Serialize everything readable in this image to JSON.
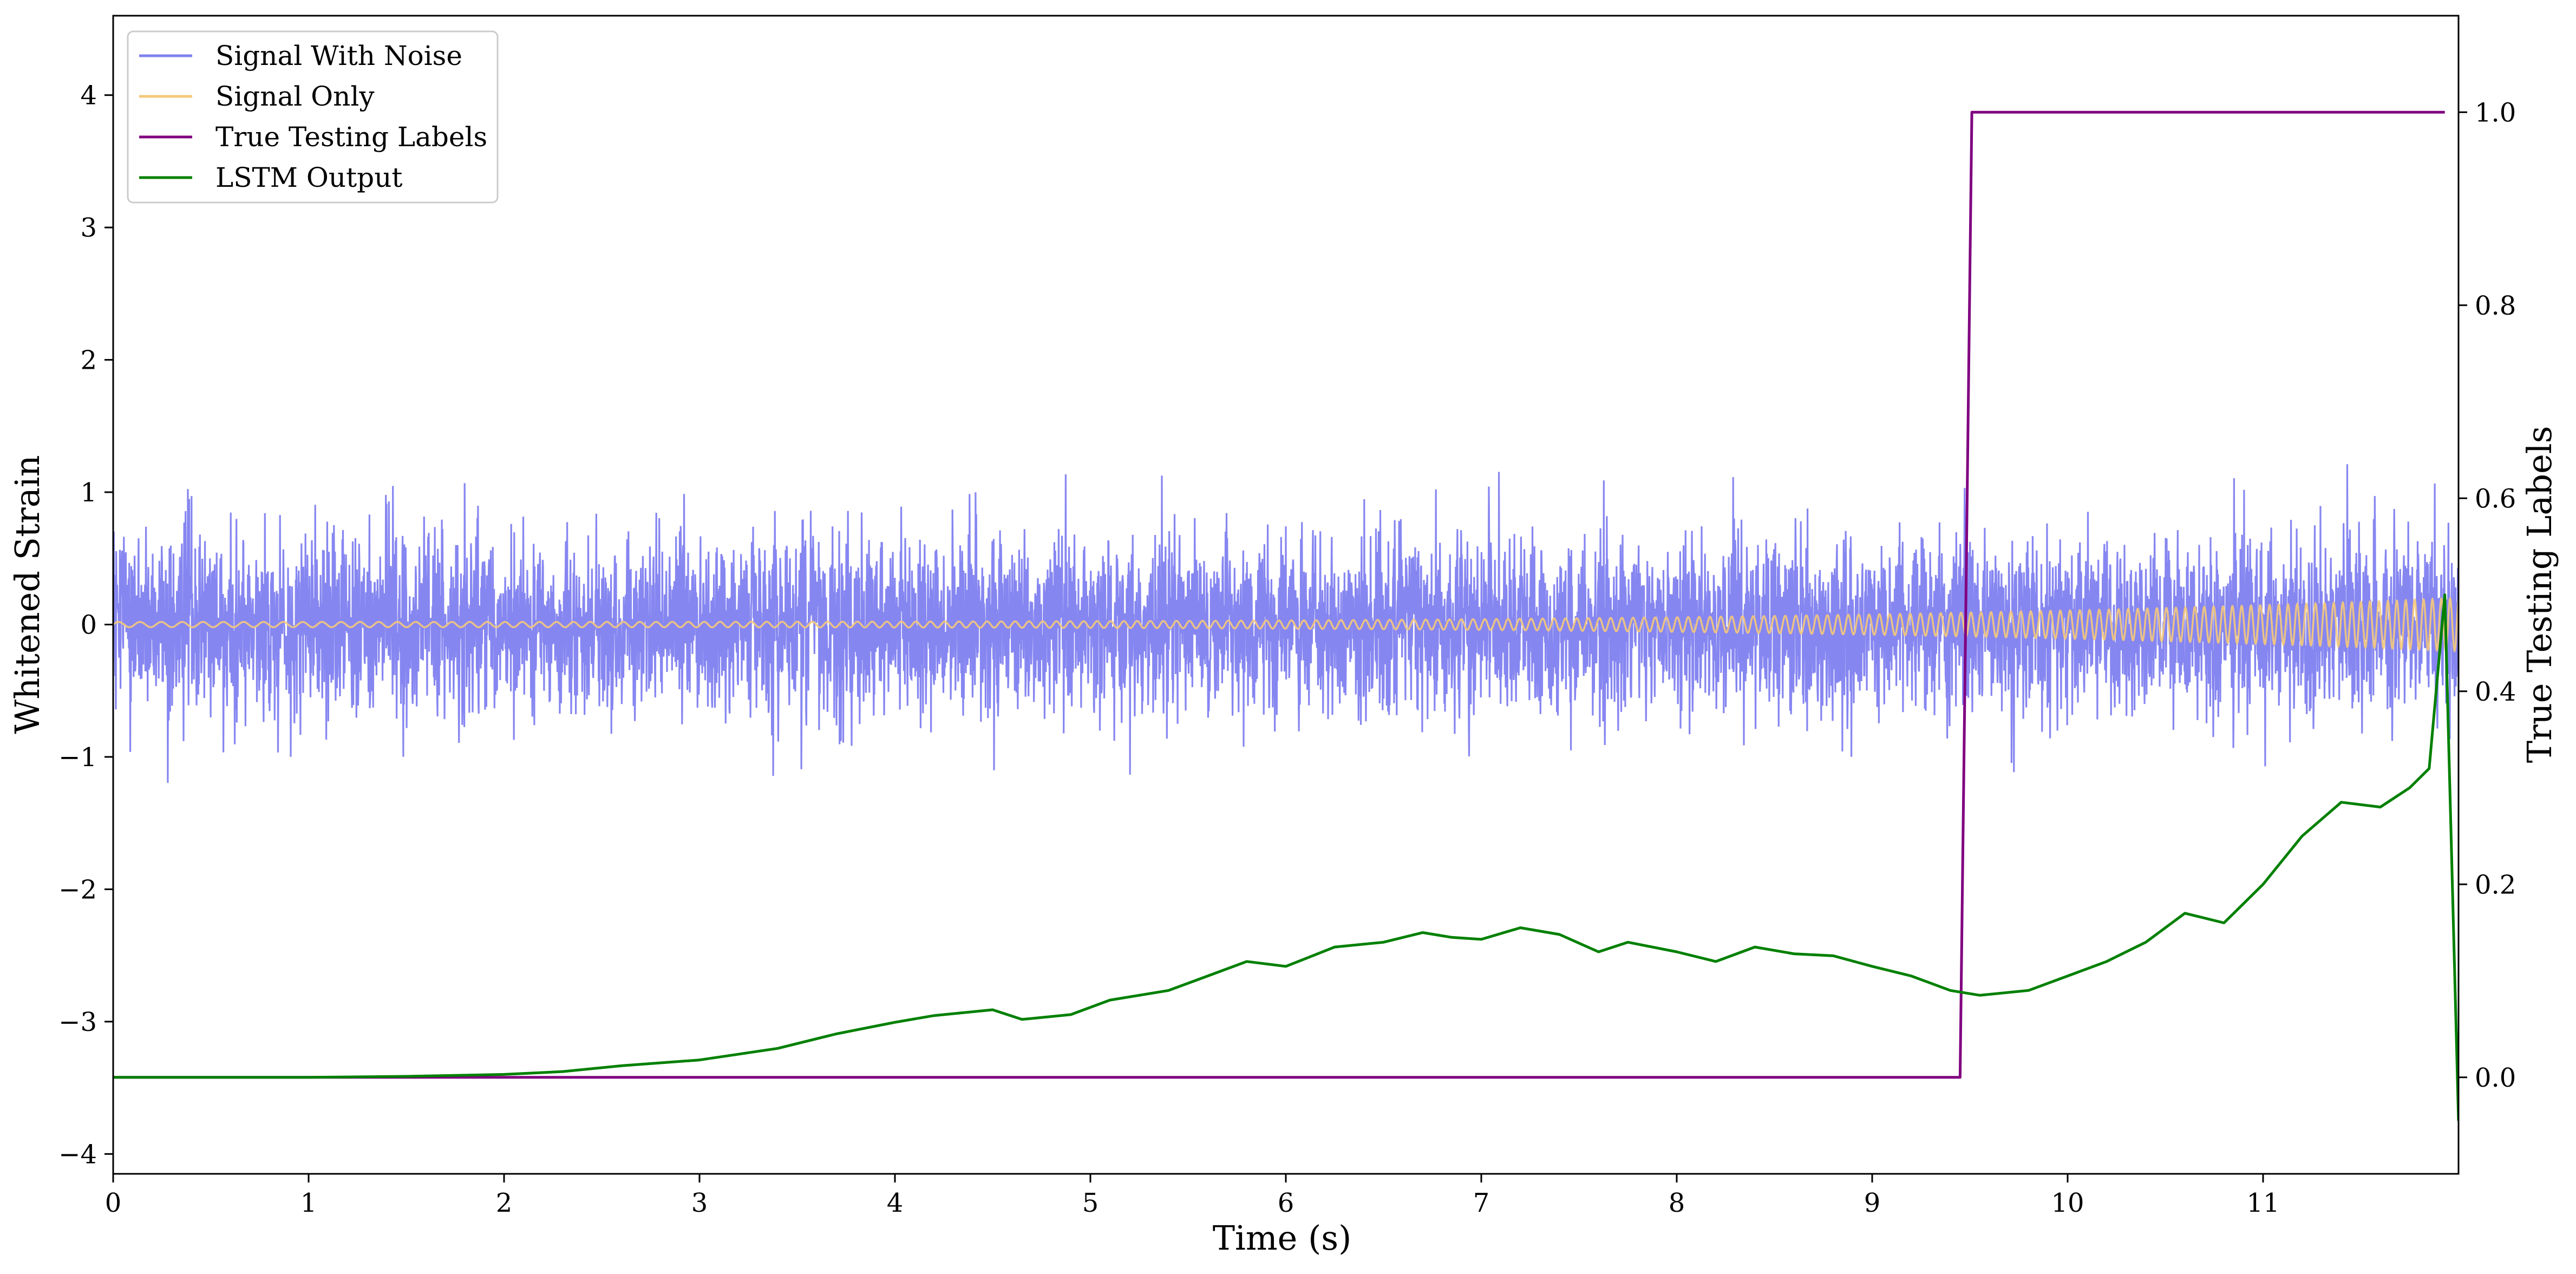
{
  "chart_data": {
    "type": "line",
    "title": "",
    "xlabel": "Time (s)",
    "ylabel": "Whitened Strain",
    "y2label": "True Testing Labels",
    "xlim": [
      0,
      12
    ],
    "ylim": [
      -4.15,
      4.6
    ],
    "y2lim": [
      -0.1,
      1.1
    ],
    "grid": false,
    "legend_position": "top-left",
    "x_ticks": [
      0,
      1,
      2,
      3,
      4,
      5,
      6,
      7,
      8,
      9,
      10,
      11
    ],
    "x_tick_labels": [
      "0",
      "1",
      "2",
      "3",
      "4",
      "5",
      "6",
      "7",
      "8",
      "9",
      "10",
      "11"
    ],
    "y_ticks": [
      4,
      3,
      2,
      1,
      0,
      -1,
      -2,
      -3,
      -4
    ],
    "y_tick_labels": [
      "4",
      "3",
      "2",
      "1",
      "0",
      "−1",
      "−2",
      "−3",
      "−4"
    ],
    "y2_ticks": [
      1.0,
      0.8,
      0.6,
      0.4,
      0.2,
      0.0
    ],
    "y2_tick_labels": [
      "1.0",
      "0.8",
      "0.6",
      "0.4",
      "0.2",
      "0.0"
    ],
    "series": [
      {
        "name": "Signal With Noise",
        "axis": "left",
        "color": "#8080f0",
        "kind": "noise",
        "noise_std": 0.33,
        "approx_range": [
          -1.2,
          1.28
        ],
        "x_range": [
          0,
          12
        ]
      },
      {
        "name": "Signal Only",
        "axis": "left",
        "color": "#f5c97a",
        "kind": "chirp",
        "amplitude_start": 0.02,
        "amplitude_end": 0.2,
        "x_range": [
          0,
          12
        ]
      },
      {
        "name": "True Testing Labels",
        "axis": "right",
        "color": "#800080",
        "x": [
          0,
          9.45,
          9.51,
          11.93
        ],
        "values": [
          0,
          0,
          1,
          1
        ]
      },
      {
        "name": "LSTM Output",
        "axis": "right",
        "color": "#008000",
        "x": [
          0,
          1,
          1.5,
          2,
          2.3,
          2.6,
          3,
          3.4,
          3.7,
          4,
          4.2,
          4.5,
          4.65,
          4.9,
          5.1,
          5.4,
          5.6,
          5.8,
          6,
          6.25,
          6.5,
          6.7,
          6.85,
          7,
          7.2,
          7.4,
          7.6,
          7.75,
          8,
          8.2,
          8.4,
          8.6,
          8.8,
          9,
          9.2,
          9.4,
          9.55,
          9.8,
          10,
          10.2,
          10.4,
          10.6,
          10.8,
          11,
          11.2,
          11.4,
          11.6,
          11.75,
          11.85,
          11.93,
          12
        ],
        "values": [
          0,
          0,
          0.001,
          0.003,
          0.006,
          0.012,
          0.018,
          0.03,
          0.045,
          0.057,
          0.064,
          0.07,
          0.06,
          0.065,
          0.08,
          0.09,
          0.105,
          0.12,
          0.115,
          0.135,
          0.14,
          0.15,
          0.145,
          0.143,
          0.155,
          0.148,
          0.13,
          0.14,
          0.13,
          0.12,
          0.135,
          0.128,
          0.126,
          0.115,
          0.105,
          0.09,
          0.085,
          0.09,
          0.105,
          0.12,
          0.14,
          0.17,
          0.16,
          0.2,
          0.25,
          0.285,
          0.28,
          0.3,
          0.32,
          0.5,
          -0.045
        ]
      }
    ]
  }
}
